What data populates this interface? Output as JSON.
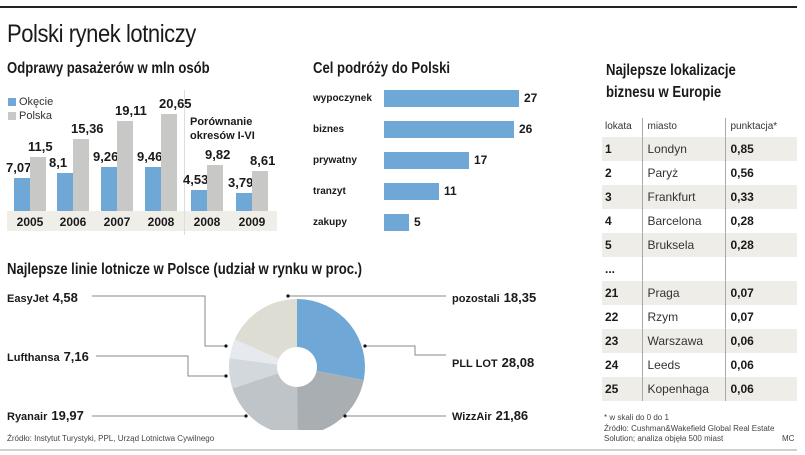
{
  "title": "Polski rynek lotniczy",
  "colors": {
    "okecie": "#6fa8d6",
    "polska": "#c8c8c6",
    "tick_band": "#efeee9",
    "hbar": "#6fa8d6"
  },
  "chart_data": [
    {
      "type": "bar",
      "title": "Odprawy pasażerów w mln osób",
      "categories": [
        "2005",
        "2006",
        "2007",
        "2008",
        "2008",
        "2009"
      ],
      "series": [
        {
          "name": "Okęcie",
          "values": [
            7.07,
            8.1,
            9.26,
            9.46,
            4.53,
            3.79
          ],
          "labels": [
            "7,07",
            "8,1",
            "9,26",
            "9,46",
            "4,53",
            "3,79"
          ]
        },
        {
          "name": "Polska",
          "values": [
            11.5,
            15.36,
            19.11,
            20.65,
            9.82,
            8.61
          ],
          "labels": [
            "11,5",
            "15,36",
            "19,11",
            "20,65",
            "9,82",
            "8,61"
          ]
        }
      ],
      "annotation": "Porównanie okresów I-VI",
      "annotation_lines": [
        "Porównanie",
        "okresów I-VI"
      ],
      "legend": [
        "Okęcie",
        "Polska"
      ],
      "legend_position": "top-left"
    },
    {
      "type": "bar",
      "orientation": "horizontal",
      "title": "Cel podróży do Polski",
      "categories": [
        "wypoczynek",
        "biznes",
        "prywatny",
        "tranzyt",
        "zakupy"
      ],
      "values": [
        27,
        26,
        17,
        11,
        5
      ]
    },
    {
      "type": "pie",
      "title": "Najlepsze linie lotnicze  w Polsce (udział w rynku w proc.)",
      "slices": [
        {
          "name": "PLL LOT",
          "value": 28.08,
          "label": "28,08",
          "color": "#6fa8d6"
        },
        {
          "name": "WizzAir",
          "value": 21.86,
          "label": "21,86",
          "color": "#a9aeb3"
        },
        {
          "name": "Ryanair",
          "value": 19.97,
          "label": "19,97",
          "color": "#bfc4c9"
        },
        {
          "name": "Lufthansa",
          "value": 7.16,
          "label": "7,16",
          "color": "#d3d8dd"
        },
        {
          "name": "EasyJet",
          "value": 4.58,
          "label": "4,58",
          "color": "#e6eaee"
        },
        {
          "name": "pozostali",
          "value": 18.35,
          "label": "18,35",
          "color": "#deddd4"
        }
      ],
      "source": "Źródło: Instytut Turystyki, PPL, Urząd Lotnictwa Cywilnego"
    },
    {
      "type": "table",
      "title_lines": [
        "Najlepsze lokalizacje",
        "biznesu w Europie"
      ],
      "columns": [
        "lokata",
        "miasto",
        "punktacja*"
      ],
      "rows": [
        [
          "1",
          "Londyn",
          "0,85"
        ],
        [
          "2",
          "Paryż",
          "0,56"
        ],
        [
          "3",
          "Frankfurt",
          "0,33"
        ],
        [
          "4",
          "Barcelona",
          "0,28"
        ],
        [
          "5",
          "Bruksela",
          "0,28"
        ],
        [
          "...",
          "",
          ""
        ],
        [
          "21",
          "Praga",
          "0,07"
        ],
        [
          "22",
          "Rzym",
          "0,07"
        ],
        [
          "23",
          "Warszawa",
          "0,06"
        ],
        [
          "24",
          "Leeds",
          "0,06"
        ],
        [
          "25",
          "Kopenhaga",
          "0,06"
        ]
      ],
      "footnote": "* w skali do 0 do 1",
      "source_lines": [
        "Źródło: Cushman&Wakefield Global Real Estate",
        "Solution; analiza objęła 500 miast"
      ],
      "author": "MC"
    }
  ]
}
